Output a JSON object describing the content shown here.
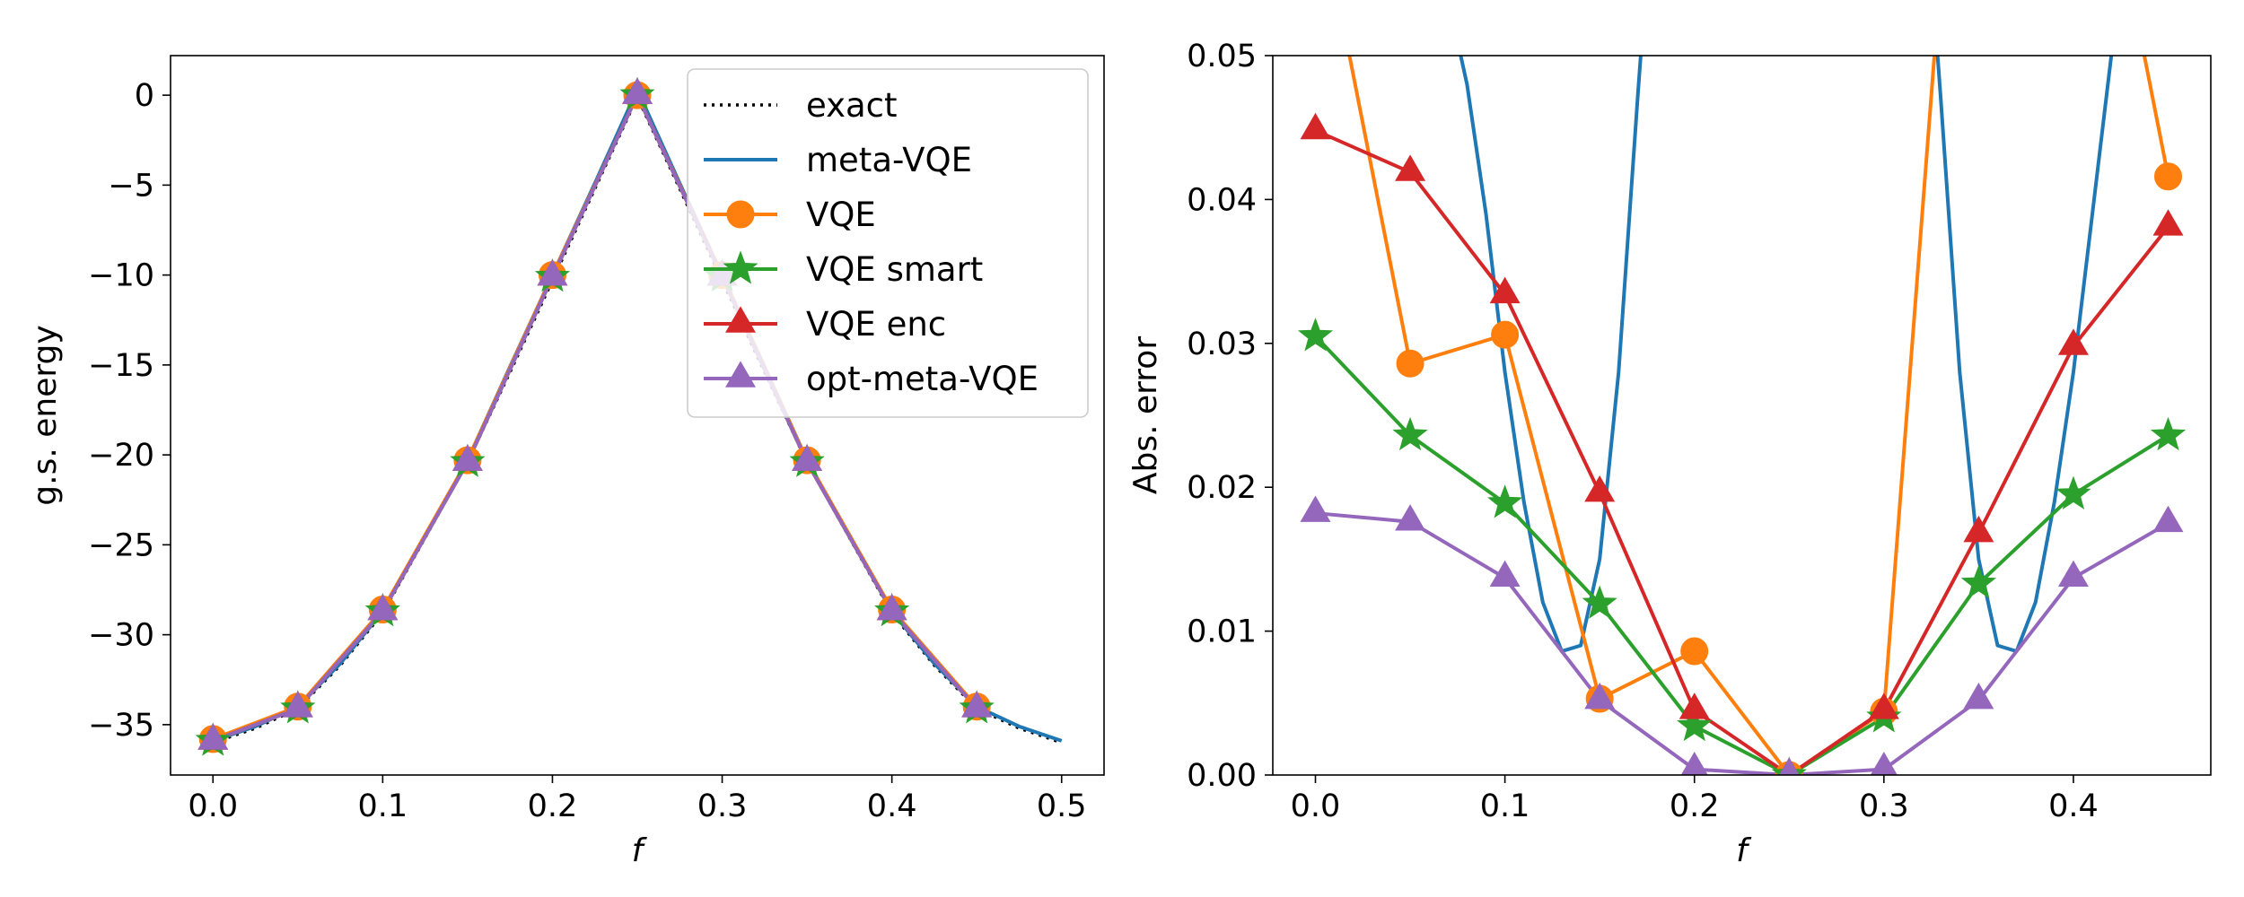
{
  "chart_data": [
    {
      "type": "line",
      "title": "",
      "xlabel": "f",
      "ylabel": "g.s. energy",
      "xlim": [
        -0.025,
        0.525
      ],
      "ylim": [
        -37.8,
        2.2
      ],
      "xticks": [
        0.0,
        0.1,
        0.2,
        0.3,
        0.4,
        0.5
      ],
      "xtick_labels": [
        "0.0",
        "0.1",
        "0.2",
        "0.3",
        "0.4",
        "0.5"
      ],
      "yticks": [
        0,
        -5,
        -10,
        -15,
        -20,
        -25,
        -30,
        -35
      ],
      "ytick_labels": [
        "0",
        "−5",
        "−10",
        "−15",
        "−20",
        "−25",
        "−30",
        "−35"
      ],
      "grid": false,
      "legend": {
        "position": "top-right",
        "entries": [
          "exact",
          "meta-VQE",
          "VQE",
          "VQE smart",
          "VQE enc",
          "opt-meta-VQE"
        ]
      },
      "series": [
        {
          "name": "exact",
          "color": "#000000",
          "style": "dotted",
          "marker": "none",
          "x": [
            0.0,
            0.025,
            0.05,
            0.075,
            0.1,
            0.125,
            0.15,
            0.175,
            0.2,
            0.225,
            0.25,
            0.275,
            0.3,
            0.325,
            0.35,
            0.375,
            0.4,
            0.425,
            0.45,
            0.475,
            0.5
          ],
          "values": [
            -36.0,
            -35.2,
            -34.1,
            -31.7,
            -28.8,
            -24.6,
            -20.4,
            -15.4,
            -10.3,
            -5.2,
            -0.1,
            -5.2,
            -10.3,
            -15.4,
            -20.4,
            -24.6,
            -28.8,
            -31.7,
            -34.1,
            -35.2,
            -36.0
          ]
        },
        {
          "name": "meta-VQE",
          "color": "#1f77b4",
          "style": "solid",
          "marker": "none",
          "x": [
            0.0,
            0.025,
            0.05,
            0.075,
            0.1,
            0.125,
            0.15,
            0.175,
            0.2,
            0.225,
            0.25,
            0.275,
            0.3,
            0.325,
            0.35,
            0.375,
            0.4,
            0.425,
            0.45,
            0.475,
            0.5
          ],
          "values": [
            -35.9,
            -35.1,
            -34.0,
            -31.6,
            -28.7,
            -24.5,
            -20.3,
            -15.1,
            -10.0,
            -4.9,
            0.3,
            -4.9,
            -10.0,
            -15.1,
            -20.3,
            -24.5,
            -28.7,
            -31.6,
            -34.0,
            -35.1,
            -35.9
          ]
        },
        {
          "name": "VQE",
          "color": "#ff7f0e",
          "style": "solid",
          "marker": "circle",
          "x": [
            0.0,
            0.05,
            0.1,
            0.15,
            0.2,
            0.25,
            0.3,
            0.35,
            0.4,
            0.45
          ],
          "values": [
            -35.8,
            -34.0,
            -28.6,
            -20.3,
            -10.0,
            0.0,
            -10.0,
            -20.3,
            -28.6,
            -34.0
          ]
        },
        {
          "name": "VQE smart",
          "color": "#2ca02c",
          "style": "solid",
          "marker": "star",
          "x": [
            0.0,
            0.05,
            0.1,
            0.15,
            0.2,
            0.25,
            0.3,
            0.35,
            0.4,
            0.45
          ],
          "values": [
            -35.9,
            -34.1,
            -28.7,
            -20.4,
            -10.1,
            0.0,
            -10.1,
            -20.4,
            -28.7,
            -34.1
          ]
        },
        {
          "name": "VQE enc",
          "color": "#d62728",
          "style": "solid",
          "marker": "triangle",
          "x": [
            0.0,
            0.05,
            0.1,
            0.15,
            0.2,
            0.25,
            0.3,
            0.35,
            0.4,
            0.45
          ],
          "values": [
            -35.9,
            -34.1,
            -28.7,
            -20.4,
            -10.1,
            0.0,
            -10.1,
            -20.4,
            -28.7,
            -34.1
          ]
        },
        {
          "name": "opt-meta-VQE",
          "color": "#9467bd",
          "style": "solid",
          "marker": "triangle",
          "x": [
            0.0,
            0.05,
            0.1,
            0.15,
            0.2,
            0.25,
            0.3,
            0.35,
            0.4,
            0.45
          ],
          "values": [
            -35.9,
            -34.1,
            -28.7,
            -20.4,
            -10.1,
            0.0,
            -10.1,
            -20.4,
            -28.7,
            -34.1
          ]
        }
      ]
    },
    {
      "type": "line",
      "title": "",
      "xlabel": "f",
      "ylabel": "Abs. error",
      "xlim": [
        -0.0225,
        0.4725
      ],
      "ylim": [
        0.0,
        0.05
      ],
      "xticks": [
        0.0,
        0.1,
        0.2,
        0.3,
        0.4
      ],
      "xtick_labels": [
        "0.0",
        "0.1",
        "0.2",
        "0.3",
        "0.4"
      ],
      "yticks": [
        0.0,
        0.01,
        0.02,
        0.03,
        0.04,
        0.05
      ],
      "ytick_labels": [
        "0.00",
        "0.01",
        "0.02",
        "0.03",
        "0.04",
        "0.05"
      ],
      "grid": false,
      "series": [
        {
          "name": "meta-VQE",
          "color": "#1f77b4",
          "style": "solid",
          "marker": "none",
          "x": [
            0.075,
            0.08,
            0.09,
            0.1,
            0.11,
            0.12,
            0.13,
            0.14,
            0.15,
            0.16,
            0.17,
            0.175,
            0.325,
            0.33,
            0.34,
            0.35,
            0.36,
            0.37,
            0.38,
            0.39,
            0.4,
            0.41,
            0.42
          ],
          "values": [
            0.051,
            0.048,
            0.039,
            0.028,
            0.019,
            0.012,
            0.0086,
            0.009,
            0.015,
            0.028,
            0.047,
            0.056,
            0.056,
            0.047,
            0.028,
            0.015,
            0.009,
            0.0086,
            0.012,
            0.019,
            0.028,
            0.039,
            0.05
          ]
        },
        {
          "name": "VQE",
          "color": "#ff7f0e",
          "style": "solid",
          "marker": "circle",
          "x": [
            0.0,
            0.05,
            0.1,
            0.15,
            0.2,
            0.25,
            0.3,
            0.35,
            0.4,
            0.45
          ],
          "values": [
            0.062,
            0.0286,
            0.0306,
            0.0053,
            0.0086,
            0.0,
            0.0044,
            0.09,
            0.075,
            0.0416
          ]
        },
        {
          "name": "VQE smart",
          "color": "#2ca02c",
          "style": "solid",
          "marker": "star",
          "x": [
            0.0,
            0.05,
            0.1,
            0.15,
            0.2,
            0.25,
            0.3,
            0.35,
            0.4,
            0.45
          ],
          "values": [
            0.0305,
            0.0236,
            0.0189,
            0.0119,
            0.0034,
            0.0,
            0.004,
            0.0133,
            0.0195,
            0.0236
          ]
        },
        {
          "name": "VQE enc",
          "color": "#d62728",
          "style": "solid",
          "marker": "triangle",
          "x": [
            0.0,
            0.05,
            0.1,
            0.15,
            0.2,
            0.25,
            0.3,
            0.35,
            0.4,
            0.45
          ],
          "values": [
            0.0448,
            0.0419,
            0.0334,
            0.0196,
            0.0045,
            0.0,
            0.0045,
            0.0168,
            0.0298,
            0.0381
          ]
        },
        {
          "name": "opt-meta-VQE",
          "color": "#9467bd",
          "style": "solid",
          "marker": "triangle",
          "x": [
            0.0,
            0.05,
            0.1,
            0.15,
            0.2,
            0.25,
            0.3,
            0.35,
            0.4,
            0.45
          ],
          "values": [
            0.0182,
            0.0176,
            0.0137,
            0.0052,
            0.0004,
            0.0,
            0.0004,
            0.0052,
            0.0137,
            0.0175
          ]
        }
      ]
    }
  ]
}
